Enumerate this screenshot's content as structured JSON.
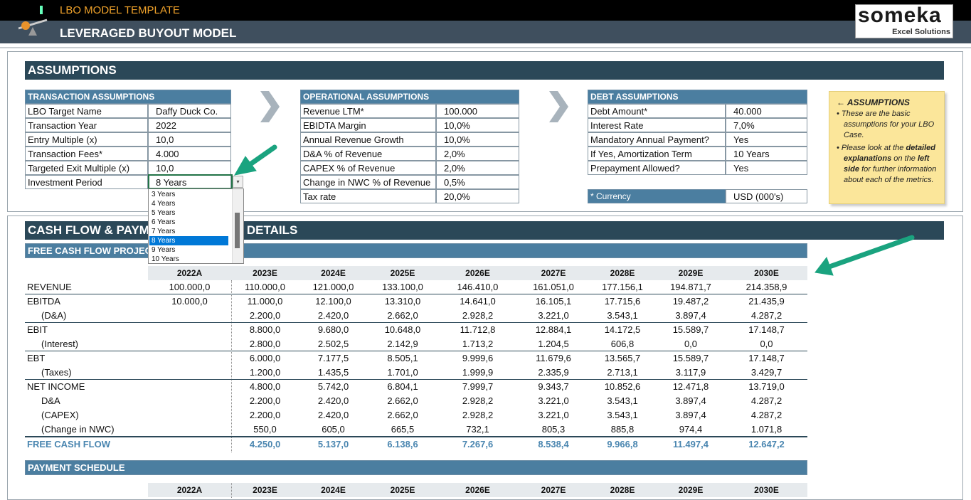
{
  "header": {
    "template": "LBO MODEL TEMPLATE",
    "title": "LEVERAGED BUYOUT MODEL",
    "logo": "someka",
    "logo_sub": "Excel Solutions"
  },
  "assumptions": {
    "title": "ASSUMPTIONS",
    "transaction": {
      "title": "TRANSACTION ASSUMPTIONS",
      "rows": [
        [
          "LBO Target Name",
          "Daffy Duck Co."
        ],
        [
          "Transaction Year",
          "2022"
        ],
        [
          "Entry Multiple (x)",
          "10,0"
        ],
        [
          "Transaction Fees*",
          "4.000"
        ],
        [
          "Targeted Exit Multiple (x)",
          "10,0"
        ],
        [
          "Investment Period",
          "8 Years"
        ]
      ]
    },
    "operational": {
      "title": "OPERATIONAL ASSUMPTIONS",
      "rows": [
        [
          "Revenue LTM*",
          "100.000"
        ],
        [
          "EBIDTA Margin",
          "10,0%"
        ],
        [
          "Annual Revenue Growth",
          "10,0%"
        ],
        [
          "D&A % of Revenue",
          "2,0%"
        ],
        [
          "CAPEX % of Revenue",
          "2,0%"
        ],
        [
          "Change in NWC % of Revenue",
          "0,5%"
        ],
        [
          "Tax rate",
          "20,0%"
        ]
      ]
    },
    "debt": {
      "title": "DEBT ASSUMPTIONS",
      "rows": [
        [
          "Debt Amount*",
          "40.000"
        ],
        [
          "Interest Rate",
          "7,0%"
        ],
        [
          "Mandatory Annual Payment?",
          "Yes"
        ],
        [
          "If Yes, Amortization Term",
          "10 Years"
        ],
        [
          "Prepayment Allowed?",
          "Yes"
        ]
      ]
    },
    "currency": [
      "* Currency",
      "USD (000's)"
    ],
    "dropdown": {
      "options": [
        "3 Years",
        "4 Years",
        "5 Years",
        "6 Years",
        "7 Years",
        "8 Years",
        "9 Years",
        "10 Years"
      ],
      "selected": 5
    },
    "note": {
      "title": "ASSUMPTIONS",
      "bullets": [
        [
          "These are the basic assumptions for your LBO Case."
        ],
        [
          "Please look at the ",
          "detailed explanations",
          " on the ",
          "left side",
          " for further information about each of the metrics."
        ]
      ]
    }
  },
  "cash_flow": {
    "title": "CASH FLOW & PAYMENT SCHEDULE DETAILS",
    "projections": {
      "title": "FREE CASH FLOW PROJECTIONS",
      "years": [
        "2022A",
        "2023E",
        "2024E",
        "2025E",
        "2026E",
        "2027E",
        "2028E",
        "2029E",
        "2030E"
      ],
      "rows": [
        {
          "label": "REVENUE",
          "values": [
            "100.000,0",
            "110.000,0",
            "121.000,0",
            "133.100,0",
            "146.410,0",
            "161.051,0",
            "177.156,1",
            "194.871,7",
            "214.358,9"
          ]
        },
        {
          "label": "EBITDA",
          "values": [
            "10.000,0",
            "11.000,0",
            "12.100,0",
            "13.310,0",
            "14.641,0",
            "16.105,1",
            "17.715,6",
            "19.487,2",
            "21.435,9"
          ]
        },
        {
          "label": "(D&A)",
          "values": [
            null,
            "2.200,0",
            "2.420,0",
            "2.662,0",
            "2.928,2",
            "3.221,0",
            "3.543,1",
            "3.897,4",
            "4.287,2"
          ]
        },
        {
          "label": "EBIT",
          "values": [
            null,
            "8.800,0",
            "9.680,0",
            "10.648,0",
            "11.712,8",
            "12.884,1",
            "14.172,5",
            "15.589,7",
            "17.148,7"
          ]
        },
        {
          "label": "(Interest)",
          "values": [
            null,
            "2.800,0",
            "2.502,5",
            "2.142,9",
            "1.713,2",
            "1.204,5",
            "606,8",
            "0,0",
            "0,0"
          ]
        },
        {
          "label": "EBT",
          "values": [
            null,
            "6.000,0",
            "7.177,5",
            "8.505,1",
            "9.999,6",
            "11.679,6",
            "13.565,7",
            "15.589,7",
            "17.148,7"
          ]
        },
        {
          "label": "(Taxes)",
          "values": [
            null,
            "1.200,0",
            "1.435,5",
            "1.701,0",
            "1.999,9",
            "2.335,9",
            "2.713,1",
            "3.117,9",
            "3.429,7"
          ]
        },
        {
          "label": "NET INCOME",
          "values": [
            null,
            "4.800,0",
            "5.742,0",
            "6.804,1",
            "7.999,7",
            "9.343,7",
            "10.852,6",
            "12.471,8",
            "13.719,0"
          ]
        },
        {
          "label": "D&A",
          "values": [
            null,
            "2.200,0",
            "2.420,0",
            "2.662,0",
            "2.928,2",
            "3.221,0",
            "3.543,1",
            "3.897,4",
            "4.287,2"
          ]
        },
        {
          "label": "(CAPEX)",
          "values": [
            null,
            "2.200,0",
            "2.420,0",
            "2.662,0",
            "2.928,2",
            "3.221,0",
            "3.543,1",
            "3.897,4",
            "4.287,2"
          ]
        },
        {
          "label": "(Change in NWC)",
          "values": [
            null,
            "550,0",
            "605,0",
            "665,5",
            "732,1",
            "805,3",
            "885,8",
            "974,4",
            "1.071,8"
          ]
        },
        {
          "label": "FREE CASH FLOW",
          "values": [
            null,
            "4.250,0",
            "5.137,0",
            "6.138,6",
            "7.267,6",
            "8.538,4",
            "9.966,8",
            "11.497,4",
            "12.647,2"
          ]
        }
      ]
    },
    "payment": {
      "title": "PAYMENT SCHEDULE",
      "years": [
        "2022A",
        "2023E",
        "2024E",
        "2025E",
        "2026E",
        "2027E",
        "2028E",
        "2029E",
        "2030E"
      ]
    }
  }
}
